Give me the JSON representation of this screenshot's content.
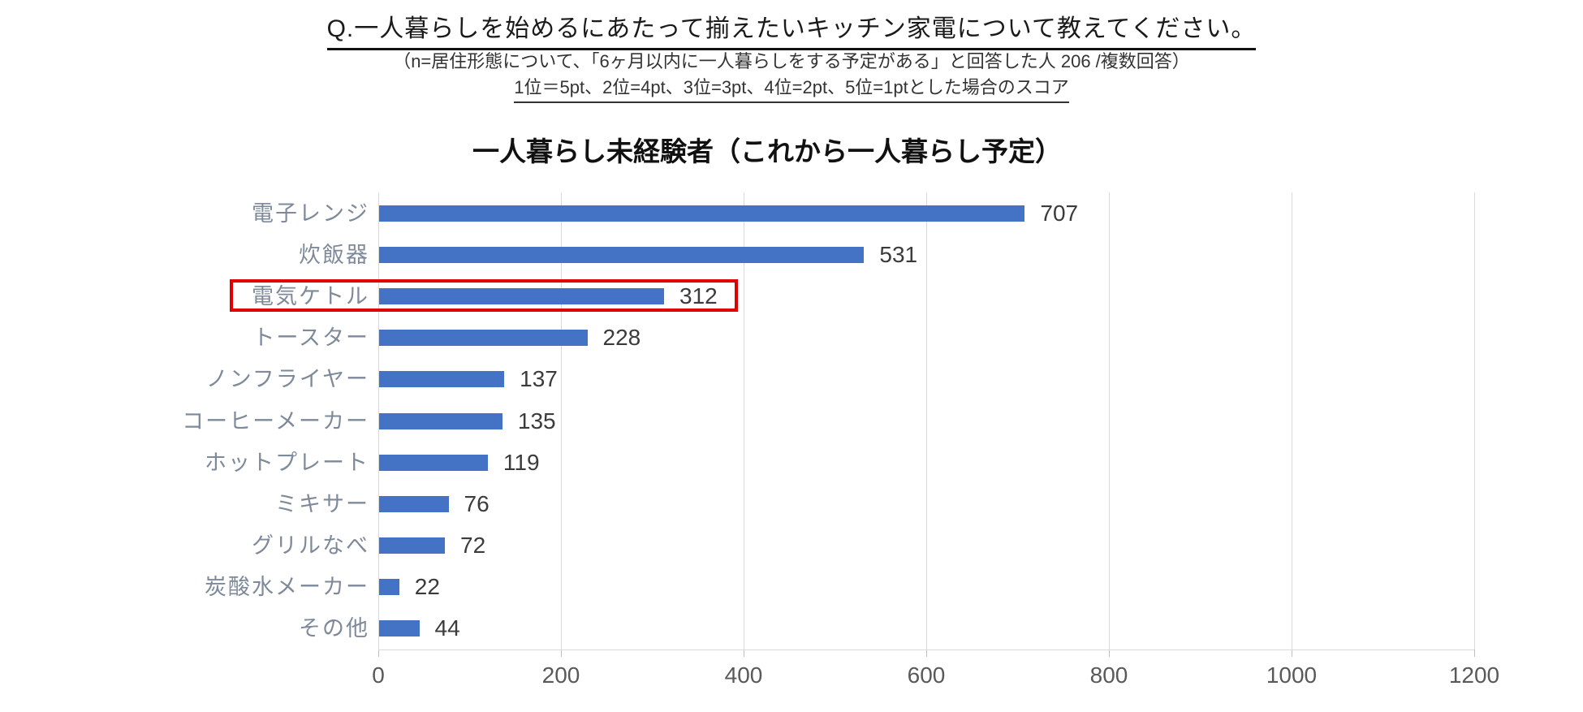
{
  "header": {
    "question": "Q.一人暮らしを始めるにあたって揃えたいキッチン家電について教えてください。",
    "sample_note": "（n=居住形態について、「6ヶ月以内に一人暮らしをする予定がある」と回答した人 206 /複数回答）",
    "scoring_note": "1位＝5pt、2位=4pt、3位=3pt、4位=2pt、5位=1ptとした場合のスコア"
  },
  "chart_data": {
    "type": "bar",
    "orientation": "horizontal",
    "title": "一人暮らし未経験者（これから一人暮らし予定）",
    "categories": [
      "電子レンジ",
      "炊飯器",
      "電気ケトル",
      "トースター",
      "ノンフライヤー",
      "コーヒーメーカー",
      "ホットプレート",
      "ミキサー",
      "グリルなべ",
      "炭酸水メーカー",
      "その他"
    ],
    "values": [
      707,
      531,
      312,
      228,
      137,
      135,
      119,
      76,
      72,
      22,
      44
    ],
    "xlabel": "",
    "ylabel": "",
    "xlim": [
      0,
      1200
    ],
    "x_ticks": [
      0,
      200,
      400,
      600,
      800,
      1000,
      1200
    ],
    "grid": true,
    "legend": false,
    "bar_color": "#4472C4",
    "gridline_color": "#D9D9D9",
    "category_label_color": "#7E8A9A",
    "value_label_color": "#3B3B3B",
    "tick_label_color": "#595959",
    "highlight": {
      "category": "電気ケトル",
      "value": 312,
      "box_color": "#E00000"
    }
  }
}
